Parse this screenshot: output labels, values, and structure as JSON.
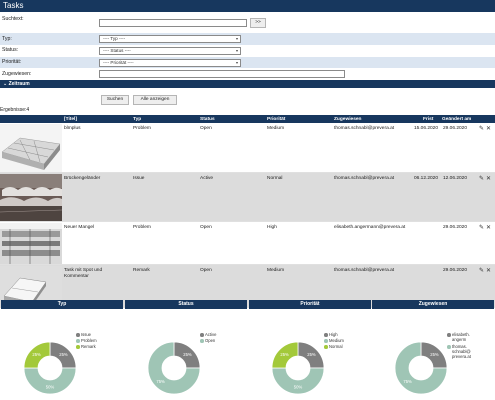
{
  "title": "Tasks",
  "form": {
    "suchtext_label": "Suchtext:",
    "suchtext_value": "",
    "go_label": ">>",
    "typ_label": "Typ:",
    "typ_value": "---- Typ ----",
    "status_label": "Status:",
    "status_value": "---- Status ----",
    "prioritaet_label": "Priorität:",
    "prioritaet_value": "---- Priorität ----",
    "zugewiesen_label": "Zugewiesen:",
    "zugewiesen_value": ""
  },
  "zeitraum_label": "Zeitraum",
  "buttons": {
    "suchen": "Suchen",
    "alle_anzeigen": "Alle anzeigen"
  },
  "results_label": "Ergebnisse:4",
  "columns": {
    "titel": "[Titel]",
    "typ": "Typ",
    "status": "Status",
    "prioritaet": "Priorität",
    "zugewiesen": "Zugewiesen",
    "frist": "Frist",
    "geaendert": "Geändert am"
  },
  "rows": [
    {
      "titel": "blmplus",
      "typ": "Problem",
      "status": "Open",
      "prioritaet": "Medium",
      "zugewiesen": "thomas.schnabl@prevera.at",
      "frist": "15.06.2020",
      "geaendert": "29.06.2020"
    },
    {
      "titel": "Brückengeländer",
      "typ": "Issue",
      "status": "Active",
      "prioritaet": "Normal",
      "zugewiesen": "thomas.schnabl@prevera.at",
      "frist": "06.12.2020",
      "geaendert": "12.06.2020"
    },
    {
      "titel": "Neuer Mangel",
      "typ": "Problem",
      "status": "Open",
      "prioritaet": "High",
      "zugewiesen": "elisabeth.angermann@prevera.at",
      "frist": "",
      "geaendert": "29.06.2020"
    },
    {
      "titel": "Task mit Spot und Kommentar",
      "typ": "Remark",
      "status": "Open",
      "prioritaet": "Medium",
      "zugewiesen": "thomas.schnabl@prevera.at",
      "frist": "",
      "geaendert": "29.06.2020"
    }
  ],
  "chart_data": [
    {
      "type": "pie",
      "title": "Typ",
      "slices": [
        {
          "label": "Issue",
          "value": 25
        },
        {
          "label": "Problem",
          "value": 50
        },
        {
          "label": "Remark",
          "value": 25
        }
      ],
      "colors": [
        "#7f7f7f",
        "#9fc5b5",
        "#a3c93a"
      ],
      "legend": "right"
    },
    {
      "type": "pie",
      "title": "Status",
      "slices": [
        {
          "label": "Active",
          "value": 25
        },
        {
          "label": "Open",
          "value": 75
        }
      ],
      "colors": [
        "#7f7f7f",
        "#9fc5b5"
      ],
      "legend": "right"
    },
    {
      "type": "pie",
      "title": "Priorität",
      "slices": [
        {
          "label": "High",
          "value": 25
        },
        {
          "label": "Medium",
          "value": 50
        },
        {
          "label": "Normal",
          "value": 25
        }
      ],
      "colors": [
        "#7f7f7f",
        "#9fc5b5",
        "#a3c93a"
      ],
      "legend": "right"
    },
    {
      "type": "pie",
      "title": "Zugewiesen",
      "slices": [
        {
          "label": "elisabeth.angerm",
          "value": 25
        },
        {
          "label": "thomas.schnabl@prevera.at",
          "value": 75
        }
      ],
      "legend_text": [
        "elisabeth.\nangerm",
        "thomas.\nschnabl@\nprevera.at"
      ],
      "colors": [
        "#7f7f7f",
        "#9fc5b5"
      ],
      "legend": "right"
    }
  ]
}
